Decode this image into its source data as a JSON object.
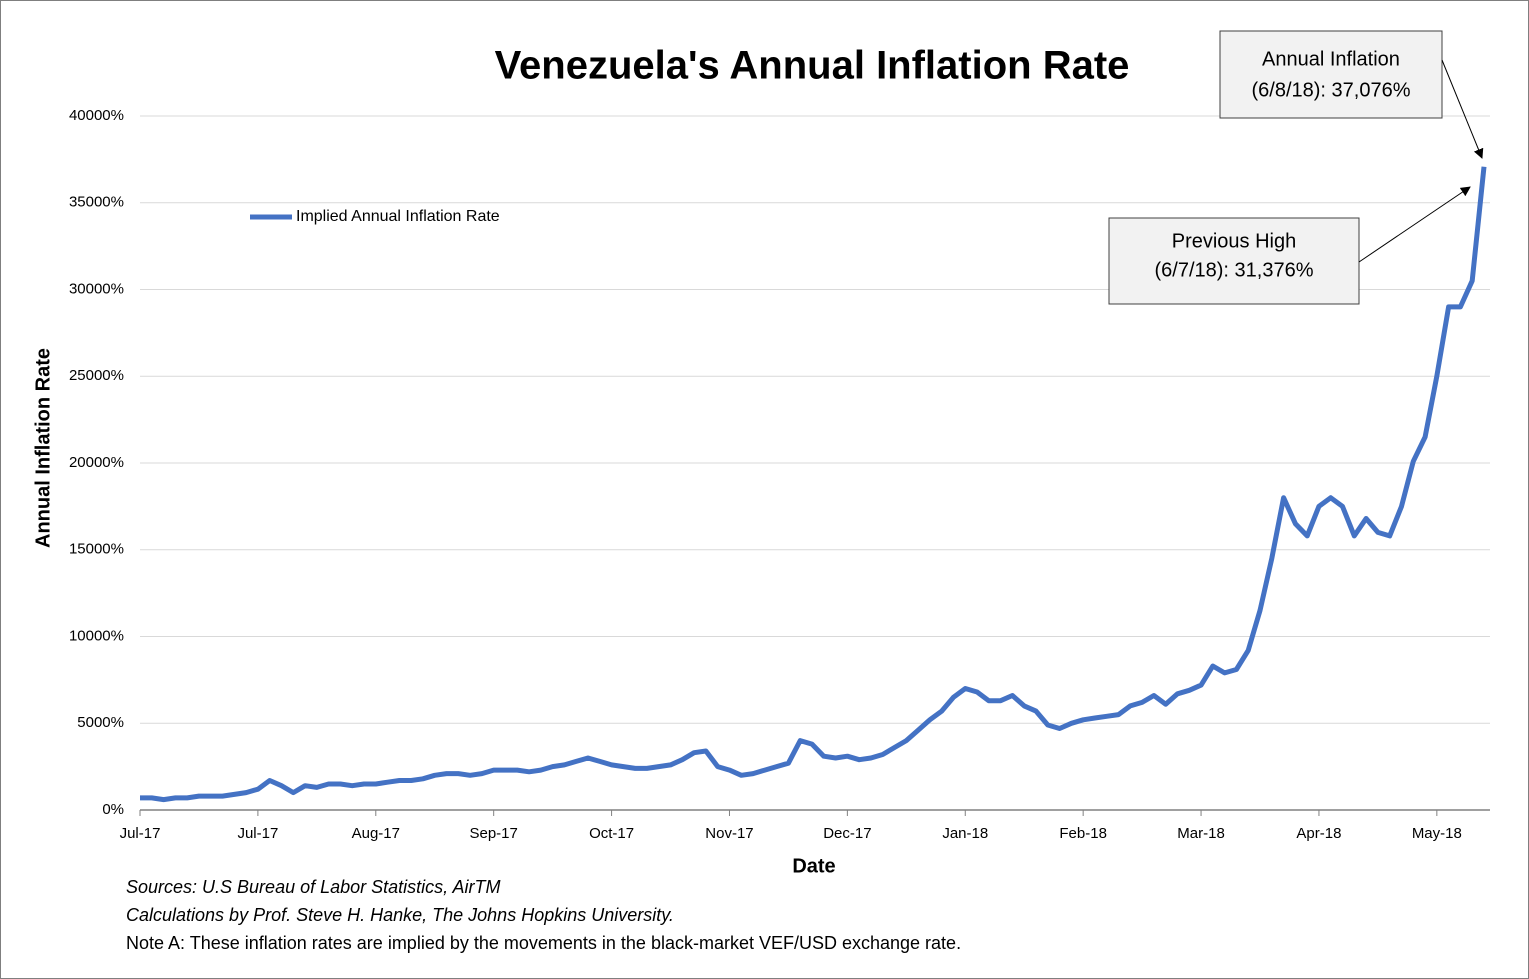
{
  "chart_data": {
    "type": "line",
    "title": "Venezuela's Annual Inflation Rate",
    "xlabel": "Date",
    "ylabel": "Annual Inflation Rate",
    "categories": [
      "Jul-17",
      null,
      null,
      null,
      null,
      null,
      null,
      null,
      null,
      null,
      "Jul-17",
      null,
      null,
      null,
      null,
      null,
      null,
      null,
      null,
      null,
      "Aug-17",
      null,
      null,
      null,
      null,
      null,
      null,
      null,
      null,
      null,
      "Sep-17",
      null,
      null,
      null,
      null,
      null,
      null,
      null,
      null,
      null,
      "Oct-17",
      null,
      null,
      null,
      null,
      null,
      null,
      null,
      null,
      null,
      "Nov-17",
      null,
      null,
      null,
      null,
      null,
      null,
      null,
      null,
      null,
      "Dec-17",
      null,
      null,
      null,
      null,
      null,
      null,
      null,
      null,
      null,
      "Jan-18",
      null,
      null,
      null,
      null,
      null,
      null,
      null,
      null,
      null,
      "Feb-18",
      null,
      null,
      null,
      null,
      null,
      null,
      null,
      null,
      null,
      "Mar-18",
      null,
      null,
      null,
      null,
      null,
      null,
      null,
      null,
      null,
      "Apr-18",
      null,
      null,
      null,
      null,
      null,
      null,
      null,
      null,
      null,
      "May-18",
      null,
      null,
      null,
      null
    ],
    "series": [
      {
        "name": "Implied Annual Inflation Rate",
        "color": "#4472c4",
        "values": [
          700,
          700,
          600,
          700,
          700,
          800,
          800,
          800,
          900,
          1000,
          1200,
          1700,
          1400,
          1000,
          1400,
          1300,
          1500,
          1500,
          1400,
          1500,
          1500,
          1600,
          1700,
          1700,
          1800,
          2000,
          2100,
          2100,
          2000,
          2100,
          2300,
          2300,
          2300,
          2200,
          2300,
          2500,
          2600,
          2800,
          3000,
          2800,
          2600,
          2500,
          2400,
          2400,
          2500,
          2600,
          2900,
          3300,
          3400,
          2500,
          2300,
          2000,
          2100,
          2300,
          2500,
          2700,
          4000,
          3800,
          3100,
          3000,
          3100,
          2900,
          3000,
          3200,
          3600,
          4000,
          4600,
          5200,
          5700,
          6500,
          7000,
          6800,
          6300,
          6300,
          6600,
          6000,
          5700,
          4900,
          4700,
          5000,
          5200,
          5300,
          5400,
          5500,
          6000,
          6200,
          6600,
          6100,
          6700,
          6900,
          7200,
          8300,
          7900,
          8100,
          9200,
          11500,
          14500,
          18000,
          16500,
          15800,
          17500,
          18000,
          17500,
          15800,
          16800,
          16000,
          15800,
          17500,
          20100,
          21500,
          25000,
          29000,
          29000,
          30500,
          37076
        ]
      }
    ],
    "ylim": [
      0,
      40000
    ],
    "yticks": [
      {
        "value": 0,
        "label": "0%"
      },
      {
        "value": 5000,
        "label": "5000%"
      },
      {
        "value": 10000,
        "label": "10000%"
      },
      {
        "value": 15000,
        "label": "15000%"
      },
      {
        "value": 20000,
        "label": "20000%"
      },
      {
        "value": 25000,
        "label": "25000%"
      },
      {
        "value": 30000,
        "label": "30000%"
      },
      {
        "value": 35000,
        "label": "35000%"
      },
      {
        "value": 40000,
        "label": "40000%"
      }
    ],
    "grid": true,
    "legend": "upper left",
    "annotations": [
      {
        "lines": [
          "Annual Inflation",
          "(6/8/18): 37,076%"
        ]
      },
      {
        "lines": [
          "Previous High",
          "(6/7/18): 31,376%"
        ]
      }
    ],
    "notes": [
      "Sources: U.S Bureau of Labor Statistics, AirTM",
      "Calculations by Prof. Steve H. Hanke, The Johns Hopkins University.",
      "Note A: These inflation rates are implied by the movements in the black-market VEF/USD exchange rate."
    ]
  }
}
